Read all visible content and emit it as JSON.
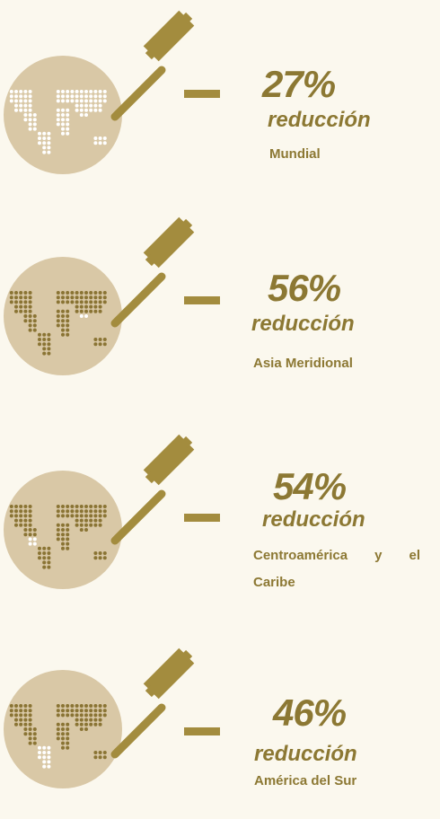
{
  "items": [
    {
      "percent": "27%",
      "label": "reducción",
      "region": "Mundial"
    },
    {
      "percent": "56%",
      "label": "reducción",
      "region": "Asia Meridional"
    },
    {
      "percent": "54%",
      "label": "reducción",
      "region": "Centroamérica y el Caribe"
    },
    {
      "percent": "46%",
      "label": "reducción",
      "region": "América del Sur"
    }
  ]
}
